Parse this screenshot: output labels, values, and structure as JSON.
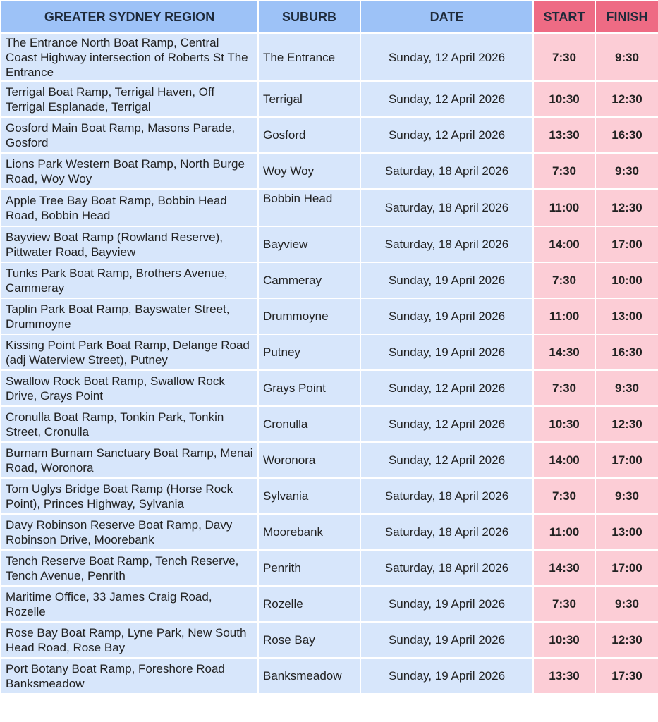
{
  "colors": {
    "header_blue": "#9dc2f7",
    "header_pink": "#ee6b84",
    "body_blue": "#d7e6fb",
    "body_pink": "#fccdd6"
  },
  "headers": [
    "GREATER SYDNEY REGION",
    "SUBURB",
    "DATE",
    "START",
    "FINISH"
  ],
  "rows": [
    {
      "location": "The Entrance North Boat Ramp, Central Coast Highway intersection of Roberts St The Entrance",
      "suburb": "The Entrance",
      "date": "Sunday, 12 April 2026",
      "start": "7:30",
      "finish": "9:30"
    },
    {
      "location": "Terrigal Boat Ramp, Terrigal Haven, Off Terrigal Esplanade, Terrigal",
      "suburb": "Terrigal",
      "date": "Sunday, 12 April 2026",
      "start": "10:30",
      "finish": "12:30"
    },
    {
      "location": "Gosford Main Boat Ramp, Masons Parade, Gosford",
      "suburb": "Gosford",
      "date": "Sunday, 12 April 2026",
      "start": "13:30",
      "finish": "16:30"
    },
    {
      "location": "Lions Park Western Boat Ramp, North Burge Road, Woy Woy",
      "suburb": "Woy Woy",
      "date": "Saturday, 18 April 2026",
      "start": "7:30",
      "finish": "9:30"
    },
    {
      "location": "Apple Tree Bay Boat Ramp, Bobbin Head Road, Bobbin Head",
      "suburb": "Bobbin Head",
      "date": "Saturday, 18 April 2026",
      "start": "11:00",
      "finish": "12:30"
    },
    {
      "location": "Bayview Boat Ramp (Rowland Reserve), Pittwater Road, Bayview",
      "suburb": "Bayview",
      "date": "Saturday, 18 April 2026",
      "start": "14:00",
      "finish": "17:00"
    },
    {
      "location": "Tunks Park Boat Ramp, Brothers Avenue, Cammeray",
      "suburb": "Cammeray",
      "date": "Sunday, 19 April 2026",
      "start": "7:30",
      "finish": "10:00"
    },
    {
      "location": "Taplin Park Boat Ramp, Bayswater Street, Drummoyne",
      "suburb": "Drummoyne",
      "date": "Sunday, 19 April 2026",
      "start": "11:00",
      "finish": "13:00"
    },
    {
      "location": "Kissing Point Park Boat Ramp, Delange Road (adj Waterview Street), Putney",
      "suburb": "Putney",
      "date": "Sunday, 19 April 2026",
      "start": "14:30",
      "finish": "16:30"
    },
    {
      "location": "Swallow Rock Boat Ramp, Swallow Rock Drive, Grays Point",
      "suburb": "Grays Point",
      "date": "Sunday, 12 April 2026",
      "start": "7:30",
      "finish": "9:30"
    },
    {
      "location": "Cronulla Boat Ramp, Tonkin Park, Tonkin Street, Cronulla",
      "suburb": "Cronulla",
      "date": "Sunday, 12 April 2026",
      "start": "10:30",
      "finish": "12:30"
    },
    {
      "location": "Burnam Burnam Sanctuary Boat Ramp, Menai Road, Woronora",
      "suburb": "Woronora",
      "date": "Sunday, 12 April 2026",
      "start": "14:00",
      "finish": "17:00"
    },
    {
      "location": "Tom Uglys Bridge Boat Ramp (Horse Rock Point), Princes Highway, Sylvania",
      "suburb": "Sylvania",
      "date": "Saturday, 18 April 2026",
      "start": "7:30",
      "finish": "9:30"
    },
    {
      "location": "Davy Robinson Reserve Boat Ramp, Davy Robinson Drive, Moorebank",
      "suburb": "Moorebank",
      "date": "Saturday, 18 April 2026",
      "start": "11:00",
      "finish": "13:00"
    },
    {
      "location": "Tench Reserve Boat Ramp, Tench Reserve, Tench Avenue, Penrith",
      "suburb": "Penrith",
      "date": "Saturday, 18 April 2026",
      "start": "14:30",
      "finish": "17:00"
    },
    {
      "location": "Maritime Office, 33 James Craig Road, Rozelle",
      "suburb": "Rozelle",
      "date": "Sunday, 19 April 2026",
      "start": "7:30",
      "finish": "9:30"
    },
    {
      "location": "Rose Bay Boat Ramp, Lyne Park, New South Head Road, Rose Bay",
      "suburb": "Rose Bay",
      "date": "Sunday, 19 April 2026",
      "start": "10:30",
      "finish": "12:30"
    },
    {
      "location": "Port Botany Boat Ramp, Foreshore Road Banksmeadow",
      "suburb": "Banksmeadow",
      "date": "Sunday, 19 April 2026",
      "start": "13:30",
      "finish": "17:30"
    }
  ]
}
